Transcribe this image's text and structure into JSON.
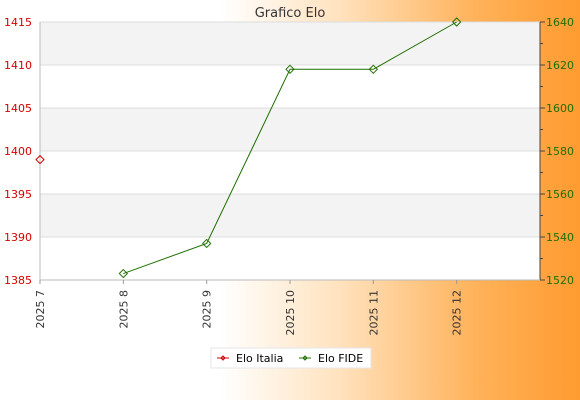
{
  "chart_data": {
    "type": "line",
    "title": "Grafico Elo",
    "categories": [
      "2025 7",
      "2025 8",
      "2025 9",
      "2025 10",
      "2025 11",
      "2025 12"
    ],
    "y_left": {
      "ticks": [
        1385,
        1390,
        1395,
        1400,
        1405,
        1410,
        1415
      ],
      "range": [
        1385,
        1415
      ],
      "color": "#d40000"
    },
    "y_right": {
      "ticks": [
        1520,
        1540,
        1560,
        1580,
        1600,
        1620,
        1640
      ],
      "range": [
        1520,
        1640
      ],
      "color": "#1f6f00"
    },
    "series": [
      {
        "name": "Elo Italia",
        "color": "#d40000",
        "axis": "left",
        "values": [
          1399,
          null,
          null,
          null,
          null,
          null
        ]
      },
      {
        "name": "Elo FIDE",
        "color": "#1f6f00",
        "axis": "right",
        "values": [
          null,
          1523,
          1537,
          1618,
          1618,
          1640
        ]
      }
    ],
    "grid": true,
    "legend_position": "bottom"
  }
}
